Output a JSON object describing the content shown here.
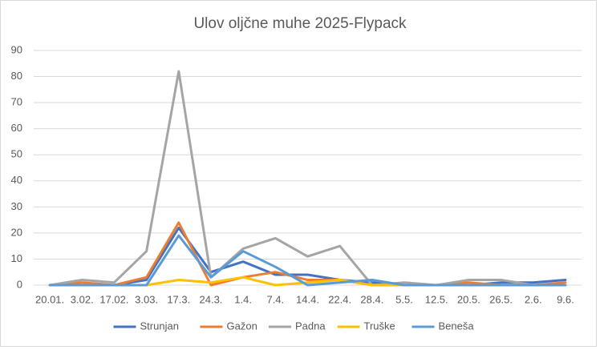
{
  "chart_data": {
    "type": "line",
    "title": "Ulov oljčne muhe 2025-Flypack",
    "categories": [
      "20.01.",
      "3.02.",
      "17.02.",
      "3.03.",
      "17.3.",
      "24.3.",
      "1.4.",
      "7.4.",
      "14.4.",
      "22.4.",
      "28.4.",
      "5.5.",
      "12.5.",
      "20.5.",
      "26.5.",
      "2.6.",
      "9.6."
    ],
    "series": [
      {
        "name": "Strunjan",
        "color": "#4472c4",
        "values": [
          0,
          0,
          0,
          2,
          22,
          5,
          9,
          4,
          4,
          2,
          1,
          0,
          0,
          0,
          1,
          1,
          2
        ]
      },
      {
        "name": "Gažon",
        "color": "#ed7d31",
        "values": [
          0,
          1,
          0,
          3,
          24,
          0,
          3,
          5,
          2,
          2,
          0,
          0,
          0,
          1,
          0,
          0,
          1
        ]
      },
      {
        "name": "Padna",
        "color": "#a5a5a5",
        "values": [
          0,
          2,
          1,
          13,
          82,
          3,
          14,
          18,
          11,
          15,
          0,
          1,
          0,
          2,
          2,
          0,
          0
        ]
      },
      {
        "name": "Truške",
        "color": "#ffc000",
        "values": [
          0,
          0,
          0,
          0,
          2,
          1,
          3,
          0,
          1,
          2,
          0,
          0,
          0,
          0,
          0,
          0,
          0
        ]
      },
      {
        "name": "Beneša",
        "color": "#5b9bd5",
        "values": [
          0,
          0,
          0,
          0,
          19,
          3,
          13,
          7,
          0,
          1,
          2,
          0,
          0,
          0,
          0,
          0,
          0
        ]
      }
    ],
    "ylim": [
      0,
      90
    ],
    "yticks": [
      0,
      10,
      20,
      30,
      40,
      50,
      60,
      70,
      80,
      90
    ],
    "grid": true,
    "legend": "bottom"
  }
}
